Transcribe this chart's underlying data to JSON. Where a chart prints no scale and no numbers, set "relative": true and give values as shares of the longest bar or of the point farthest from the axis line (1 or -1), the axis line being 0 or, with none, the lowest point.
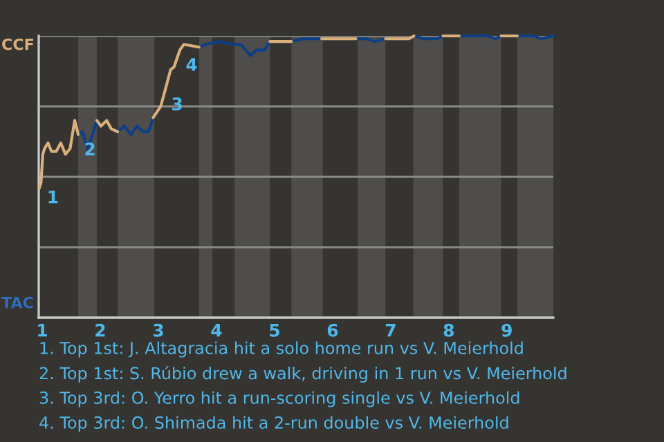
{
  "chart_data": {
    "type": "line",
    "relative": true,
    "x": [
      0.95,
      0.98,
      1.01,
      1.04,
      1.1,
      1.16,
      1.24,
      1.32,
      1.4,
      1.48,
      1.56,
      1.62,
      1.69,
      1.78,
      1.87,
      1.94,
      2.01,
      2.11,
      2.19,
      2.3,
      2.41,
      2.53,
      2.63,
      2.74,
      2.83,
      2.91,
      3.04,
      3.12,
      3.21,
      3.27,
      3.37,
      3.44,
      3.7,
      3.82,
      4.04,
      4.28,
      4.42,
      4.59,
      4.69,
      4.83,
      4.92,
      5.29,
      5.5,
      5.81,
      6.32,
      6.4,
      6.59,
      6.72,
      6.91,
      7.2,
      7.32,
      7.4,
      7.56,
      7.8,
      7.9,
      8.18,
      8.3,
      8.68,
      8.8,
      8.9,
      9.18,
      9.47,
      9.59,
      9.8
    ],
    "series": [
      {
        "color": "#d9b07c",
        "values": [
          0.46,
          0.48,
          0.58,
          0.6,
          0.62,
          0.59,
          0.59,
          0.62,
          0.58,
          0.6,
          0.7,
          0.65,
          null,
          null,
          null,
          0.7,
          0.68,
          0.7,
          0.67,
          0.66,
          null,
          null,
          null,
          null,
          null,
          0.71,
          0.75,
          0.81,
          0.88,
          0.89,
          0.95,
          0.97,
          0.96,
          null,
          null,
          null,
          null,
          null,
          null,
          null,
          0.98,
          0.98,
          null,
          0.99,
          0.99,
          0.99,
          null,
          null,
          0.99,
          0.99,
          0.99,
          1.0,
          null,
          null,
          1.0,
          1.0,
          null,
          null,
          null,
          1.0,
          1.0,
          null,
          null,
          null
        ]
      },
      {
        "color": "#0d3f86",
        "values": [
          null,
          null,
          null,
          null,
          null,
          null,
          null,
          null,
          null,
          null,
          null,
          0.65,
          0.66,
          0.6,
          0.65,
          0.7,
          null,
          null,
          null,
          0.66,
          0.68,
          0.65,
          0.68,
          0.66,
          0.66,
          0.71,
          null,
          null,
          null,
          null,
          null,
          null,
          0.96,
          0.97,
          0.98,
          0.97,
          0.97,
          0.93,
          0.95,
          0.95,
          0.98,
          0.98,
          0.99,
          0.99,
          null,
          0.99,
          0.99,
          0.98,
          0.99,
          null,
          null,
          1.0,
          0.99,
          0.99,
          1.0,
          1.0,
          1.0,
          1.0,
          0.99,
          1.0,
          1.0,
          1.0,
          0.99,
          1.0
        ]
      }
    ],
    "xlim": [
      0.94,
      9.8
    ],
    "xticks": [
      1,
      2,
      3,
      4,
      5,
      6,
      7,
      8,
      9
    ],
    "tick_labels": "x",
    "grid": "y",
    "marker": "none",
    "line_style": "solid",
    "bands": [
      {
        "axis": "x",
        "from": 1.62,
        "to": 1.94,
        "color": "#4e4d4b"
      },
      {
        "axis": "x",
        "from": 2.3,
        "to": 2.93,
        "color": "#4e4d4b"
      },
      {
        "axis": "x",
        "from": 3.7,
        "to": 3.93,
        "color": "#4e4d4b"
      },
      {
        "axis": "x",
        "from": 4.31,
        "to": 4.92,
        "color": "#4e4d4b"
      },
      {
        "axis": "x",
        "from": 5.29,
        "to": 5.83,
        "color": "#4e4d4b"
      },
      {
        "axis": "x",
        "from": 6.43,
        "to": 6.91,
        "color": "#4e4d4b"
      },
      {
        "axis": "x",
        "from": 7.39,
        "to": 7.9,
        "color": "#4e4d4b"
      },
      {
        "axis": "x",
        "from": 8.18,
        "to": 8.9,
        "color": "#4e4d4b"
      },
      {
        "axis": "x",
        "from": 9.18,
        "to": 9.8,
        "color": "#4e4d4b"
      }
    ],
    "annotations": [
      {
        "text": "1",
        "x": 0.98,
        "y": 0.48
      },
      {
        "text": "2",
        "x": 1.62,
        "y": 0.65
      },
      {
        "text": "3",
        "x": 3.12,
        "y": 0.81
      },
      {
        "text": "4",
        "x": 3.37,
        "y": 0.95
      },
      "CCF",
      "TAC",
      "1. Top 1st: J. Altagracia hit a solo home run vs V. Meierhold",
      "2. Top 1st: S. Rúbio drew a walk, driving in 1 run vs V. Meierhold",
      "3. Top 3rd: O. Yerro hit a run-scoring single vs V. Meierhold",
      "4. Top 3rd: O. Shimada hit a 2-run double vs V. Meierhold"
    ]
  }
}
